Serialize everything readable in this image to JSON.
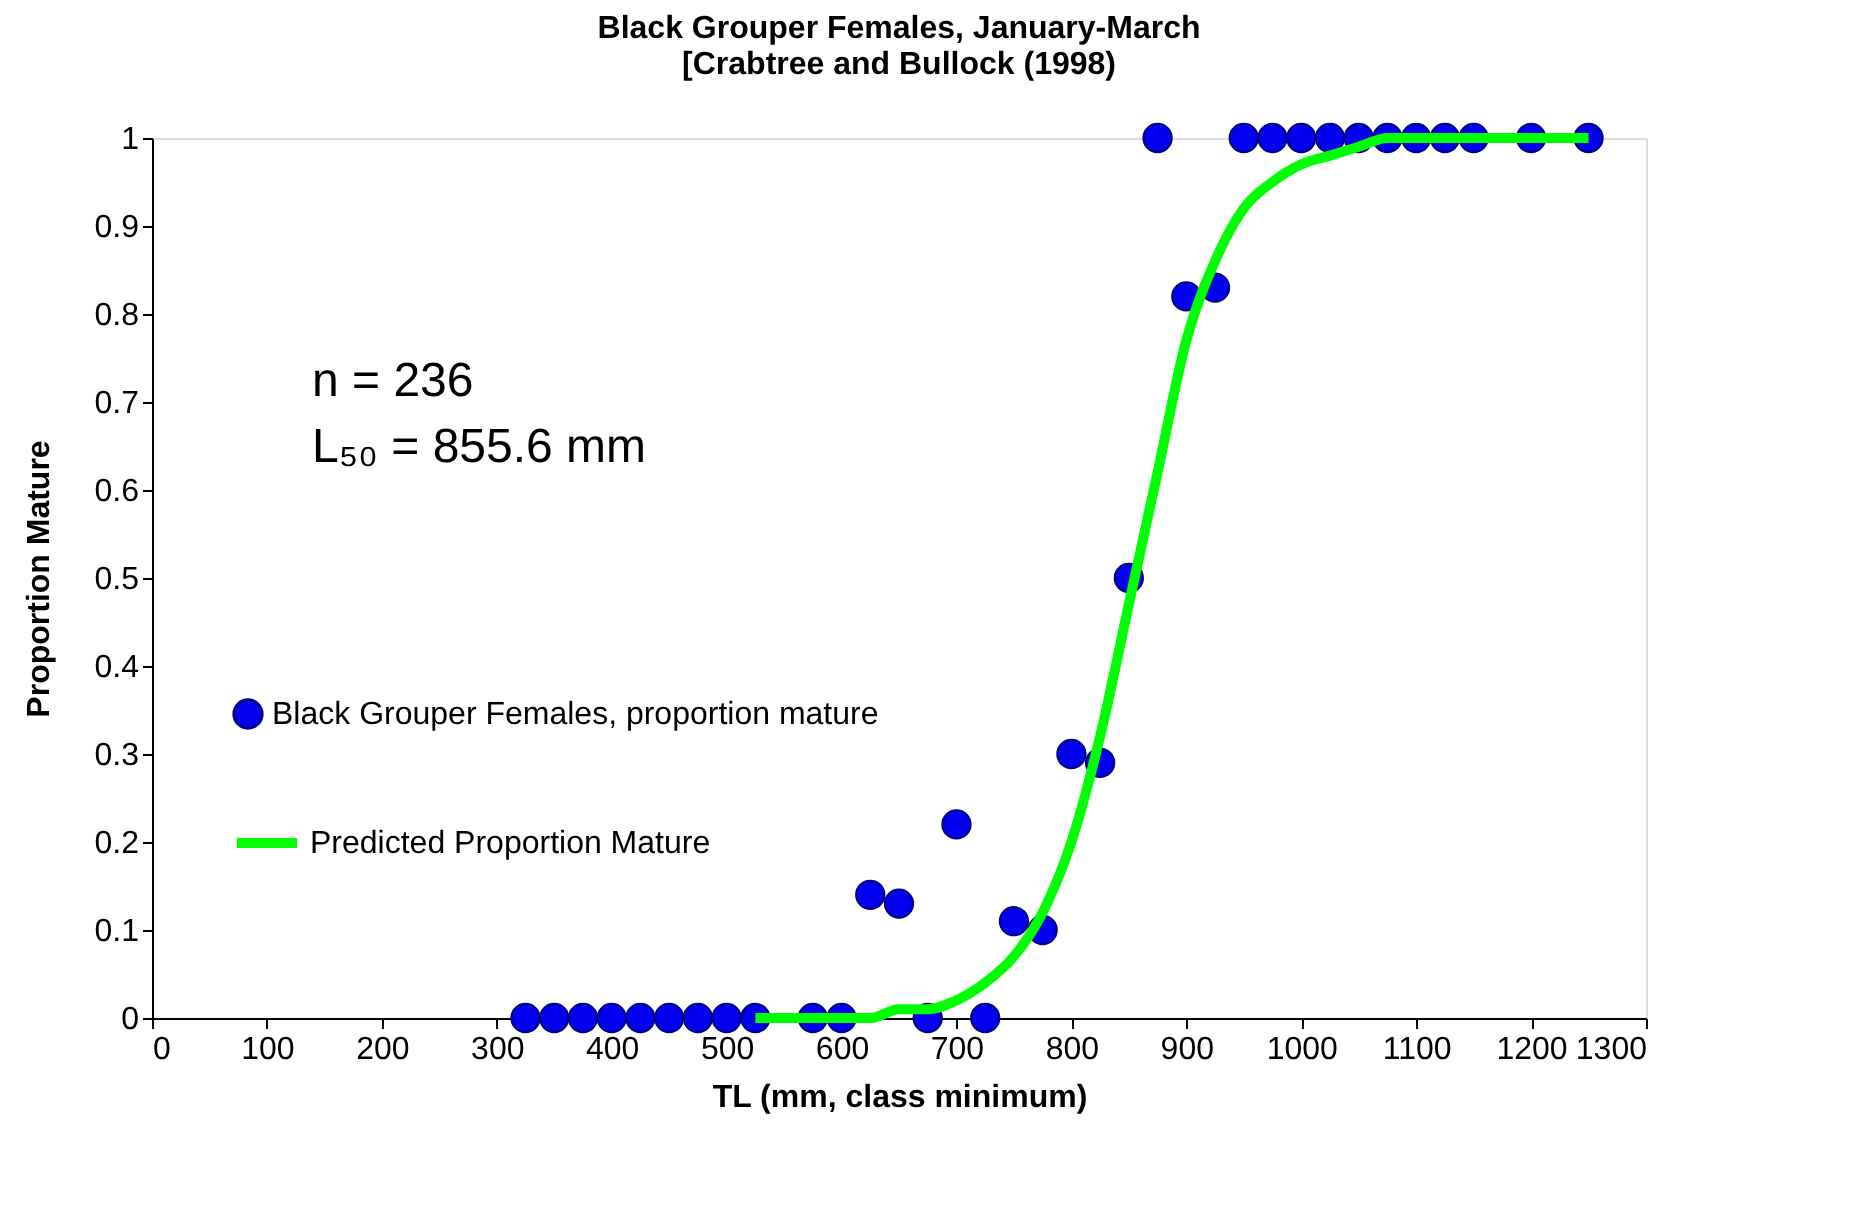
{
  "chart_data": {
    "type": "scatter",
    "title": "Black Grouper Females, January-March",
    "subtitle": "[Crabtree and Bullock (1998)",
    "xlabel": "TL (mm, class minimum)",
    "ylabel": "Proportion Mature",
    "annotations": [
      "n = 236",
      "L₅₀ = 855.6 mm"
    ],
    "xlim": [
      0,
      1300
    ],
    "xticks": [
      0,
      100,
      200,
      300,
      400,
      500,
      600,
      700,
      800,
      900,
      {
        "value": 1000,
        "label": "1000"
      },
      {
        "value": 1100,
        "label": "1100"
      },
      {
        "value": 1200,
        "label": "1200"
      },
      {
        "value": 1300,
        "label": "1300"
      }
    ],
    "ylim": [
      0,
      1
    ],
    "yticks": [
      0,
      0.1,
      0.2,
      0.3,
      0.4,
      0.5,
      0.6,
      0.7,
      0.8,
      0.9,
      1
    ],
    "grid": false,
    "legend": "center left",
    "series": [
      {
        "name": "Black Grouper Females, proportion mature",
        "marker": "circle",
        "color": "#0000ee",
        "x": [
          325,
          350,
          375,
          400,
          425,
          450,
          475,
          500,
          525,
          575,
          600,
          625,
          650,
          675,
          700,
          725,
          750,
          775,
          800,
          825,
          850,
          875,
          900,
          925,
          950,
          975,
          1000,
          1025,
          1050,
          1075,
          1100,
          1125,
          1150,
          1200,
          1250
        ],
        "values": [
          0,
          0,
          0,
          0,
          0,
          0,
          0,
          0,
          0,
          0,
          0,
          0.14,
          0.13,
          0,
          0.22,
          0,
          0.11,
          0.1,
          0.3,
          0.29,
          0.5,
          1,
          0.82,
          0.83,
          1,
          1,
          1,
          1,
          1,
          1,
          1,
          1,
          1,
          1,
          1
        ]
      },
      {
        "name": "Predicted Proportion Mature",
        "type": "line",
        "line_style": "solid",
        "marker": "none",
        "color": "#00ff00",
        "x": [
          525,
          550,
          575,
          600,
          625,
          650,
          675,
          700,
          725,
          750,
          775,
          800,
          825,
          850,
          875,
          900,
          925,
          950,
          975,
          1000,
          1025,
          1050,
          1075,
          1100,
          1150,
          1200,
          1250
        ],
        "values": [
          0,
          0,
          0,
          0,
          0,
          0.01,
          0.01,
          0.02,
          0.04,
          0.07,
          0.12,
          0.2,
          0.32,
          0.47,
          0.62,
          0.77,
          0.86,
          0.92,
          0.95,
          0.97,
          0.98,
          0.99,
          1,
          1,
          1,
          1,
          1
        ]
      }
    ]
  }
}
